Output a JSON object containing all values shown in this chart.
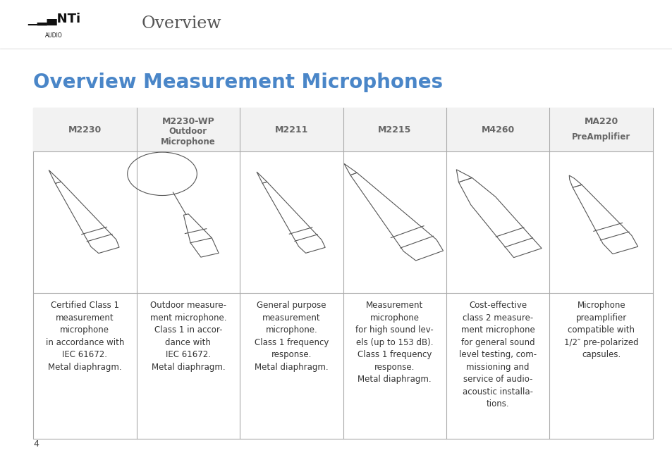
{
  "title": "Overview",
  "page_title": "Overview Measurement Microphones",
  "header_bg": "#e8e8e8",
  "page_bg": "#ffffff",
  "page_number": "4",
  "columns": [
    {
      "model": "M2230",
      "subtitle": "",
      "description": "Certified Class 1\nmeasurement\nmicrophone\nin accordance with\nIEC 61672.\nMetal diaphragm."
    },
    {
      "model": "M2230-WP",
      "subtitle": "Outdoor\nMicrophone",
      "description": "Outdoor measure-\nment microphone.\nClass 1 in accor-\ndance with\nIEC 61672.\nMetal diaphragm."
    },
    {
      "model": "M2211",
      "subtitle": "",
      "description": "General purpose\nmeasurement\nmicrophone.\nClass 1 frequency\nresponse.\nMetal diaphragm."
    },
    {
      "model": "M2215",
      "subtitle": "",
      "description": "Measurement\nmicrophone\nfor high sound lev-\nels (up to 153 dB).\nClass 1 frequency\nresponse.\nMetal diaphragm."
    },
    {
      "model": "M4260",
      "subtitle": "",
      "description": "Cost-effective\nclass 2 measure-\nment microphone\nfor general sound\nlevel testing, com-\nmissioning and\nservice of audio-\nacoustic installa-\ntions."
    },
    {
      "model": "MA220",
      "subtitle": "PreAmplifier",
      "description": "Microphone\npreamplifier\ncompatible with\n1/2″ pre-polarized\ncapsules."
    }
  ],
  "title_color": "#4a86c8",
  "header_text_color": "#666666",
  "body_text_color": "#333333",
  "title_fontsize": 20,
  "header_fontsize": 9,
  "body_fontsize": 8.5
}
